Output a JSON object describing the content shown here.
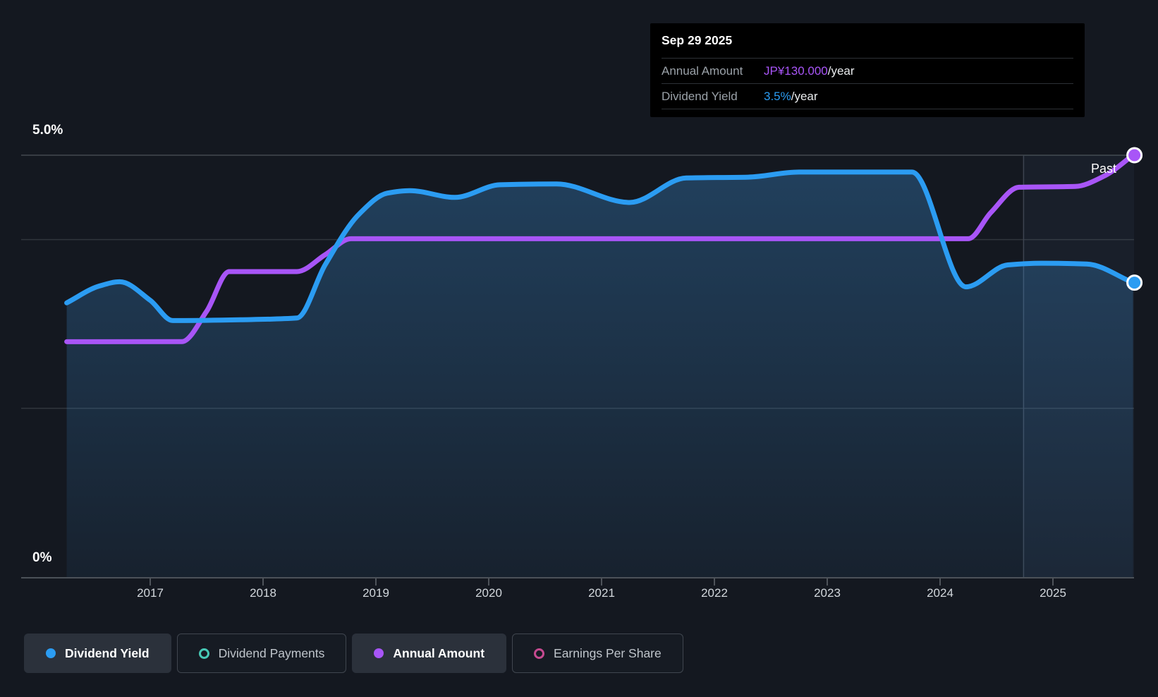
{
  "tooltip": {
    "date": "Sep 29 2025",
    "rows": [
      {
        "label": "Annual Amount",
        "value": "JP¥130.000",
        "suffix": "/year",
        "color": "#a855f7"
      },
      {
        "label": "Dividend Yield",
        "value": "3.5%",
        "suffix": "/year",
        "color": "#2b9cf2"
      }
    ]
  },
  "past_label": "Past",
  "legend": {
    "items": [
      {
        "label": "Dividend Yield",
        "marker": "filled",
        "color": "#2b9cf2",
        "active": true
      },
      {
        "label": "Dividend Payments",
        "marker": "open",
        "color": "#47c9b6",
        "active": false
      },
      {
        "label": "Annual Amount",
        "marker": "filled",
        "color": "#a855f7",
        "active": true
      },
      {
        "label": "Earnings Per Share",
        "marker": "open",
        "color": "#c64a90",
        "active": false
      }
    ]
  },
  "chart_data": {
    "type": "area",
    "x_axis": {
      "tick_years": [
        2017,
        2018,
        2019,
        2020,
        2021,
        2022,
        2023,
        2024,
        2025
      ],
      "start_year": 2016.26,
      "end_year": 2025.71
    },
    "y_axis": {
      "top_label": "5.0%",
      "bottom_label": "0%",
      "min_pct": 0,
      "max_pct": 5.0,
      "unit": "%",
      "gridlines_pct": [
        2,
        4,
        5
      ]
    },
    "past_divider_year": 2024.74,
    "grid": true,
    "series": [
      {
        "name": "Dividend Yield",
        "color": "#2b9cf2",
        "style": "area-line",
        "end_marker": true,
        "end_label": "3.5%/year",
        "points": [
          [
            2016.26,
            3.25
          ],
          [
            2016.55,
            3.45
          ],
          [
            2016.73,
            3.5
          ],
          [
            2017.0,
            3.28
          ],
          [
            2017.2,
            3.04
          ],
          [
            2017.8,
            3.05
          ],
          [
            2018.3,
            3.07
          ],
          [
            2018.55,
            3.7
          ],
          [
            2018.85,
            4.3
          ],
          [
            2019.1,
            4.55
          ],
          [
            2019.3,
            4.58
          ],
          [
            2019.7,
            4.5
          ],
          [
            2020.1,
            4.65
          ],
          [
            2020.6,
            4.66
          ],
          [
            2021.25,
            4.44
          ],
          [
            2021.75,
            4.73
          ],
          [
            2022.3,
            4.74
          ],
          [
            2022.75,
            4.8
          ],
          [
            2023.75,
            4.8
          ],
          [
            2024.23,
            3.44
          ],
          [
            2024.6,
            3.7
          ],
          [
            2024.9,
            3.72
          ],
          [
            2025.3,
            3.71
          ],
          [
            2025.71,
            3.49
          ]
        ]
      },
      {
        "name": "Annual Amount",
        "color": "#a855f7",
        "style": "line",
        "end_marker": true,
        "end_label": "JP¥130.000/year",
        "points": [
          [
            2016.26,
            2.79
          ],
          [
            2017.28,
            2.79
          ],
          [
            2017.5,
            3.15
          ],
          [
            2017.7,
            3.62
          ],
          [
            2018.3,
            3.62
          ],
          [
            2018.55,
            3.82
          ],
          [
            2018.78,
            4.01
          ],
          [
            2024.25,
            4.01
          ],
          [
            2024.45,
            4.32
          ],
          [
            2024.7,
            4.62
          ],
          [
            2025.2,
            4.63
          ],
          [
            2025.45,
            4.75
          ],
          [
            2025.71,
            5.0
          ]
        ]
      }
    ]
  }
}
